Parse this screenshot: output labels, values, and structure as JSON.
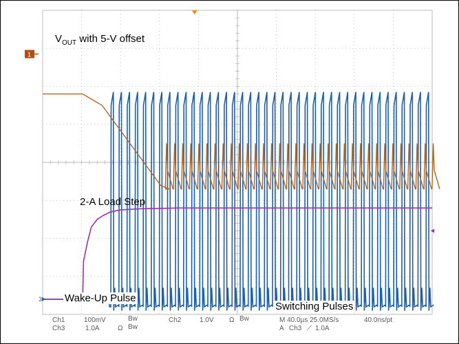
{
  "chart_data": {
    "type": "line",
    "title": "",
    "grid": true,
    "annotations": {
      "vout": {
        "main": "V",
        "sub": "OUT",
        "rest": " with 5-V offset"
      },
      "load_step": "2-A Load Step",
      "wake_up": "Wake-Up Pulse",
      "switching": "Switching Pulses"
    },
    "markers": {
      "ch1": "1",
      "ch3": "3"
    },
    "status": {
      "ch1": "Ch1",
      "ch1_scale": "100mV",
      "ch1_bw": "Bw",
      "ch2": "Ch2",
      "ch2_scale": "1.0V",
      "ch2_bw": "Bw",
      "ch3": "Ch3",
      "ch3_scale": "1.0A",
      "ch3_bw": "Bw",
      "ohm": "Ω",
      "timebase": "M 40.0µs 25.0MS/s",
      "resolution": "40.0ns/pt",
      "trigger_prefix": "A",
      "trigger_ch": "Ch3",
      "trigger_slope": "⟋",
      "trigger_level": "1.0A"
    },
    "time_per_div_us": 40,
    "x_divisions": 10,
    "y_divisions": 8,
    "trigger_time_us": 156,
    "series": [
      {
        "channel": "Ch1",
        "color": "#b5651d",
        "x_us": [
          0,
          40,
          41,
          61,
          121,
          130
        ],
        "y_div": [
          5.8,
          5.8,
          5.8,
          5.5,
          3.4,
          3.3
        ],
        "switching_ripple": {
          "start_us": 120,
          "end_us": 400,
          "period_us": 8.3,
          "low_div": 3.3,
          "high_div": 4.5
        }
      },
      {
        "channel": "Ch3",
        "color": "#9b2fae",
        "x_us": [
          0,
          40,
          41,
          42,
          46,
          50,
          56,
          62,
          70,
          80,
          100,
          140,
          400
        ],
        "y_div": [
          0.4,
          0.4,
          0.4,
          1.4,
          1.9,
          2.3,
          2.5,
          2.6,
          2.7,
          2.75,
          2.78,
          2.8,
          2.8
        ]
      },
      {
        "channel": "Ch2",
        "color": "#1a5fb4",
        "baseline_div": 0.4,
        "wake_up_pulse_us": [
          40,
          68
        ],
        "pulses_start_us": 70,
        "pulse_period_us": 8.3,
        "pulse_high_div": 5.5,
        "pulse_low_div": 0.15
      }
    ]
  }
}
